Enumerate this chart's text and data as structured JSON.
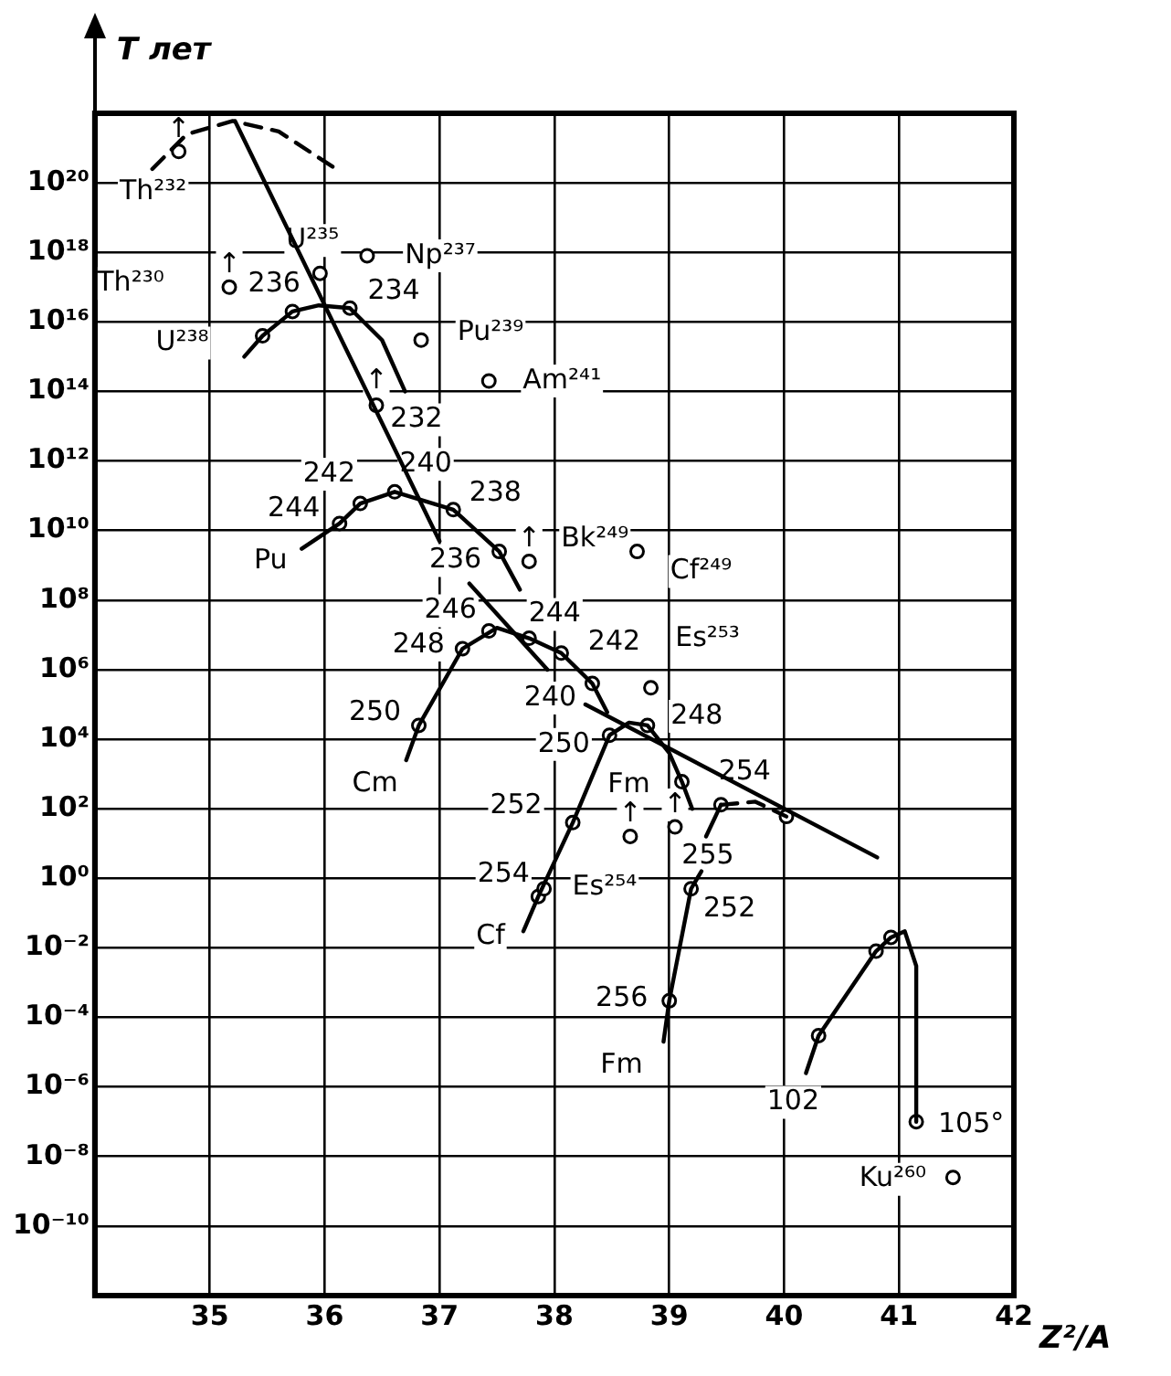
{
  "chart_data": {
    "type": "line",
    "xlabel": "Z²/A",
    "ylabel": "T лет",
    "log": "y",
    "grid": true,
    "legend": false,
    "xlim": [
      34,
      42
    ],
    "xticks": [
      35,
      36,
      37,
      38,
      39,
      40,
      41,
      42
    ],
    "ylim": [
      1e-12,
      1e+22
    ],
    "yticks": [
      {
        "value": 1e-10,
        "label": "10⁻¹⁰"
      },
      {
        "value": 1e-08,
        "label": "10⁻⁸"
      },
      {
        "value": 1e-06,
        "label": "10⁻⁶"
      },
      {
        "value": 0.0001,
        "label": "10⁻⁴"
      },
      {
        "value": 0.01,
        "label": "10⁻²"
      },
      {
        "value": 1,
        "label": "10⁰"
      },
      {
        "value": 100.0,
        "label": "10²"
      },
      {
        "value": 10000.0,
        "label": "10⁴"
      },
      {
        "value": 1000000.0,
        "label": "10⁶"
      },
      {
        "value": 100000000.0,
        "label": "10⁸"
      },
      {
        "value": 10000000000.0,
        "label": "10¹⁰"
      },
      {
        "value": 1000000000000.0,
        "label": "10¹²"
      },
      {
        "value": 100000000000000.0,
        "label": "10¹⁴"
      },
      {
        "value": 1e+16,
        "label": "10¹⁶"
      },
      {
        "value": 1e+18,
        "label": "10¹⁸"
      },
      {
        "value": 1e+20,
        "label": "10²⁰"
      }
    ],
    "series": [
      {
        "type": "line",
        "color": "#000000",
        "marker": "none",
        "line_style": "solid",
        "x": [
          35.22,
          37.0,
          37.1,
          37.26,
          37.94,
          38.1,
          38.27,
          40.81
        ],
        "values": [
          6e+21,
          5000000000.0,
          null,
          300000000.0,
          1000000.0,
          null,
          100000.0,
          4
        ]
      },
      {
        "type": "line",
        "color": "#000000",
        "marker": "none",
        "line_style": "dashed",
        "x": [
          34.5,
          34.8,
          35.2,
          35.6,
          36.1
        ],
        "values": [
          2.5e+20,
          2.5e+21,
          6e+21,
          3e+21,
          2.5e+20
        ]
      },
      {
        "type": "line",
        "color": "#000000",
        "marker": "none",
        "line_style": "solid",
        "x": [
          35.3,
          35.46,
          35.72,
          35.95,
          36.22,
          36.5,
          36.7
        ],
        "values": [
          1000000000000000.0,
          4000000000000000.0,
          2e+16,
          3e+16,
          2.5e+16,
          3000000000000000.0,
          100000000000000.0
        ]
      },
      {
        "type": "line",
        "color": "#000000",
        "marker": "none",
        "line_style": "solid",
        "x": [
          35.8,
          36.13,
          36.31,
          36.61,
          37.12,
          37.52,
          37.7
        ],
        "values": [
          3000000000.0,
          16000000000.0,
          60000000000.0,
          130000000000.0,
          40000000000.0,
          2500000000.0,
          200000000.0
        ]
      },
      {
        "type": "line",
        "color": "#000000",
        "marker": "none",
        "line_style": "solid",
        "x": [
          36.71,
          36.82,
          37.2,
          37.5,
          37.78,
          38.06,
          38.33,
          38.46
        ],
        "values": [
          2500.0,
          25000.0,
          4000000.0,
          16000000.0,
          8000000.0,
          3000000.0,
          400000.0,
          60000.0
        ]
      },
      {
        "type": "line",
        "color": "#000000",
        "marker": "none",
        "line_style": "solid",
        "x": [
          37.73,
          37.86,
          38.16,
          38.48,
          38.65,
          38.81,
          39.0,
          39.11,
          39.2
        ],
        "values": [
          0.03,
          0.3,
          40,
          13000.0,
          30000.0,
          25000.0,
          4000.0,
          600.0,
          100.0
        ]
      },
      {
        "type": "line",
        "color": "#000000",
        "marker": "none",
        "line_style": "solid",
        "x": [
          38.95,
          39.0,
          39.19,
          39.28
        ],
        "values": [
          2e-05,
          0.0003,
          0.5,
          1.6
        ]
      },
      {
        "type": "line",
        "color": "#000000",
        "marker": "none",
        "line_style": "solid",
        "x": [
          39.32,
          39.45
        ],
        "values": [
          16,
          130.0
        ]
      },
      {
        "type": "line",
        "color": "#000000",
        "marker": "none",
        "line_style": "dashed",
        "x": [
          39.45,
          39.75,
          40.02
        ],
        "values": [
          130.0,
          160.0,
          60
        ]
      },
      {
        "type": "line",
        "color": "#000000",
        "marker": "none",
        "line_style": "solid",
        "x": [
          40.19,
          40.3,
          40.8,
          40.93,
          41.05,
          41.15,
          41.15
        ],
        "values": [
          2.5e-06,
          3e-05,
          0.008,
          0.02,
          0.03,
          0.003,
          1e-07
        ]
      },
      {
        "type": "scatter",
        "color": "#000000",
        "marker": "circle",
        "x": [
          34.73,
          35.17,
          35.46,
          35.72,
          35.96,
          36.22,
          36.45,
          36.37,
          36.84,
          37.43,
          36.13,
          36.31,
          36.61,
          37.12,
          37.52,
          37.78,
          38.72,
          36.82,
          37.2,
          37.43,
          37.78,
          38.06,
          38.33,
          38.84,
          37.86,
          37.91,
          38.16,
          38.48,
          38.81,
          39.11,
          38.66,
          39.05,
          39.45,
          40.02,
          39.19,
          39.0,
          40.3,
          40.8,
          40.93,
          41.15,
          41.47
        ],
        "values": [
          8e+20,
          1e+17,
          4000000000000000.0,
          2e+16,
          2.5e+17,
          2.5e+16,
          40000000000000.0,
          8e+17,
          3000000000000000.0,
          200000000000000.0,
          16000000000.0,
          60000000000.0,
          130000000000.0,
          40000000000.0,
          2500000000.0,
          1300000000.0,
          2500000000.0,
          25000.0,
          4000000.0,
          13000000.0,
          8000000.0,
          3000000.0,
          400000.0,
          300000.0,
          0.3,
          0.5,
          40,
          13000.0,
          25000.0,
          600.0,
          16,
          30,
          130.0,
          60,
          0.5,
          0.0003,
          3e-05,
          0.008,
          0.02,
          1e-07,
          2.5e-09
        ]
      }
    ],
    "annotations": [
      {
        "text": "Th²³²",
        "x": 34.73,
        "y": 8e+20
      },
      {
        "text": "↑",
        "x": 34.73,
        "y": 8e+20
      },
      {
        "text": "U²³⁵",
        "x": 35.96,
        "y": 2.5e+17
      },
      {
        "text": "Np²³⁷",
        "x": 36.37,
        "y": 8e+17
      },
      {
        "text": "Th²³⁰",
        "x": 35.17,
        "y": 1e+17
      },
      {
        "text": "↑",
        "x": 35.17,
        "y": 1e+17
      },
      {
        "text": "236",
        "x": 35.72,
        "y": 2e+16
      },
      {
        "text": "234",
        "x": 36.22,
        "y": 2.5e+16
      },
      {
        "text": "U²³⁸",
        "x": 35.46,
        "y": 4000000000000000.0
      },
      {
        "text": "Pu²³⁹",
        "x": 36.84,
        "y": 3000000000000000.0
      },
      {
        "text": "↑",
        "x": 36.45,
        "y": 40000000000000.0
      },
      {
        "text": "232",
        "x": 36.45,
        "y": 40000000000000.0
      },
      {
        "text": "Am²⁴¹",
        "x": 37.43,
        "y": 200000000000000.0
      },
      {
        "text": "242",
        "x": 36.31,
        "y": 60000000000.0
      },
      {
        "text": "240",
        "x": 36.61,
        "y": 130000000000.0
      },
      {
        "text": "244",
        "x": 36.13,
        "y": 16000000000.0
      },
      {
        "text": "238",
        "x": 37.12,
        "y": 40000000000.0
      },
      {
        "text": "Pu",
        "x": 35.8,
        "y": 3000000000.0
      },
      {
        "text": "236",
        "x": 37.52,
        "y": 2500000000.0
      },
      {
        "text": "↑",
        "x": 37.78,
        "y": 1300000000.0
      },
      {
        "text": "Bk²⁴⁹",
        "x": 37.78,
        "y": 1300000000.0
      },
      {
        "text": "Cf²⁴⁹",
        "x": 38.72,
        "y": 2500000000.0
      },
      {
        "text": "246",
        "x": 37.43,
        "y": 13000000.0
      },
      {
        "text": "244",
        "x": 37.78,
        "y": 8000000.0
      },
      {
        "text": "248",
        "x": 37.2,
        "y": 4000000.0
      },
      {
        "text": "242",
        "x": 38.06,
        "y": 3000000.0
      },
      {
        "text": "Es²⁵³",
        "x": 38.84,
        "y": 300000.0
      },
      {
        "text": "240",
        "x": 38.33,
        "y": 400000.0
      },
      {
        "text": "250",
        "x": 36.82,
        "y": 25000.0
      },
      {
        "text": "Cm",
        "x": 36.71,
        "y": 2500.0
      },
      {
        "text": "250",
        "x": 38.48,
        "y": 13000.0
      },
      {
        "text": "248",
        "x": 38.81,
        "y": 25000.0
      },
      {
        "text": "Fm",
        "x": 39.11,
        "y": 600.0
      },
      {
        "text": "254",
        "x": 39.45,
        "y": 130.0
      },
      {
        "text": "252",
        "x": 38.16,
        "y": 40
      },
      {
        "text": "↑",
        "x": 38.66,
        "y": 16
      },
      {
        "text": "↑",
        "x": 39.05,
        "y": 30
      },
      {
        "text": "255",
        "x": 39.05,
        "y": 30
      },
      {
        "text": "Es²⁵⁴",
        "x": 38.66,
        "y": 16
      },
      {
        "text": "254",
        "x": 37.86,
        "y": 0.3
      },
      {
        "text": "252",
        "x": 39.19,
        "y": 0.5
      },
      {
        "text": "Cf",
        "x": 37.73,
        "y": 0.03
      },
      {
        "text": "256",
        "x": 39.0,
        "y": 0.0003
      },
      {
        "text": "Fm",
        "x": 38.95,
        "y": 2e-05
      },
      {
        "text": "102",
        "x": 40.19,
        "y": 2.5e-06
      },
      {
        "text": "105°",
        "x": 41.15,
        "y": 1e-07
      },
      {
        "text": "Ku²⁶⁰",
        "x": 41.47,
        "y": 2.5e-09
      }
    ]
  }
}
